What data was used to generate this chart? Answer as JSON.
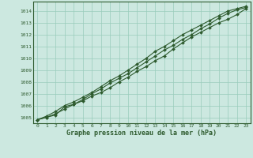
{
  "xlabel": "Graphe pression niveau de la mer (hPa)",
  "background_color": "#cce8e0",
  "grid_color": "#99ccbb",
  "line_color": "#2d5a2d",
  "text_color": "#2d5a2d",
  "xlim": [
    -0.5,
    23.5
  ],
  "ylim": [
    1004.5,
    1014.8
  ],
  "yticks": [
    1005,
    1006,
    1007,
    1008,
    1009,
    1010,
    1011,
    1012,
    1013,
    1014
  ],
  "xticks": [
    0,
    1,
    2,
    3,
    4,
    5,
    6,
    7,
    8,
    9,
    10,
    11,
    12,
    13,
    14,
    15,
    16,
    17,
    18,
    19,
    20,
    21,
    22,
    23
  ],
  "series1_x": [
    0,
    1,
    2,
    3,
    4,
    5,
    6,
    7,
    8,
    9,
    10,
    11,
    12,
    13,
    14,
    15,
    16,
    17,
    18,
    19,
    20,
    21,
    22,
    23
  ],
  "series1_y": [
    1004.8,
    1005.0,
    1005.3,
    1005.7,
    1006.1,
    1006.4,
    1006.8,
    1007.1,
    1007.5,
    1008.0,
    1008.4,
    1008.9,
    1009.3,
    1009.8,
    1010.2,
    1010.8,
    1011.3,
    1011.8,
    1012.2,
    1012.6,
    1013.0,
    1013.3,
    1013.7,
    1014.2
  ],
  "series2_x": [
    0,
    1,
    2,
    3,
    4,
    5,
    6,
    7,
    8,
    9,
    10,
    11,
    12,
    13,
    14,
    15,
    16,
    17,
    18,
    19,
    20,
    21,
    22,
    23
  ],
  "series2_y": [
    1004.8,
    1005.0,
    1005.2,
    1005.9,
    1006.1,
    1006.5,
    1007.0,
    1007.4,
    1007.9,
    1008.3,
    1008.7,
    1009.2,
    1009.7,
    1010.2,
    1010.7,
    1011.1,
    1011.6,
    1012.0,
    1012.5,
    1012.9,
    1013.4,
    1013.8,
    1014.1,
    1014.3
  ],
  "series3_x": [
    0,
    1,
    2,
    3,
    4,
    5,
    6,
    7,
    8,
    9,
    10,
    11,
    12,
    13,
    14,
    15,
    16,
    17,
    18,
    19,
    20,
    21,
    22,
    23
  ],
  "series3_y": [
    1004.8,
    1005.1,
    1005.5,
    1006.0,
    1006.3,
    1006.7,
    1007.1,
    1007.6,
    1008.1,
    1008.5,
    1009.0,
    1009.5,
    1010.0,
    1010.6,
    1011.0,
    1011.5,
    1012.0,
    1012.4,
    1012.8,
    1013.2,
    1013.6,
    1014.0,
    1014.2,
    1014.4
  ]
}
